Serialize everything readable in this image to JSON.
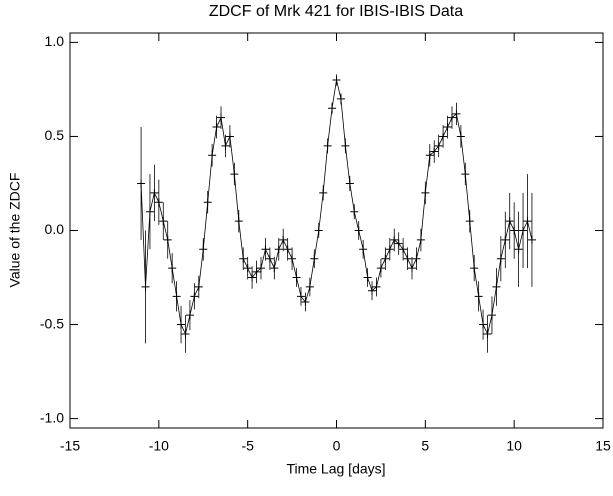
{
  "chart_data": {
    "type": "errorbar",
    "title": "ZDCF of Mrk 421 for IBIS-IBIS Data",
    "x_label": "Time Lag [days]",
    "y_label": "Value of the ZDCF",
    "xlim": [
      -15,
      15
    ],
    "xticks": [
      -15,
      -10,
      -5,
      0,
      5,
      10,
      15
    ],
    "ylim": [
      -1.05,
      1.05
    ],
    "yticks": [
      {
        "value": 1.0,
        "label": "1.0"
      },
      {
        "value": 0.5,
        "label": "0.5"
      },
      {
        "value": 0.0,
        "label": "0.0"
      },
      {
        "value": -0.5,
        "label": "-0.5"
      },
      {
        "value": -1.0,
        "label": "-1.0"
      }
    ],
    "color": "#000000",
    "x": [
      -11,
      -10.75,
      -10.5,
      -10.25,
      -10,
      -9.75,
      -9.5,
      -9.25,
      -9,
      -8.75,
      -8.5,
      -8.25,
      -8,
      -7.75,
      -7.5,
      -7.25,
      -7,
      -6.75,
      -6.5,
      -6.25,
      -6,
      -5.75,
      -5.5,
      -5.25,
      -5,
      -4.75,
      -4.5,
      -4.25,
      -4,
      -3.75,
      -3.5,
      -3.25,
      -3,
      -2.75,
      -2.5,
      -2.25,
      -2,
      -1.75,
      -1.5,
      -1.25,
      -1,
      -0.75,
      -0.5,
      -0.25,
      0,
      0.25,
      0.5,
      0.75,
      1,
      1.25,
      1.5,
      1.75,
      2,
      2.25,
      2.5,
      2.75,
      3,
      3.25,
      3.5,
      3.75,
      4,
      4.25,
      4.5,
      4.75,
      5,
      5.25,
      5.5,
      5.75,
      6,
      6.25,
      6.5,
      6.75,
      7,
      7.25,
      7.5,
      7.75,
      8,
      8.25,
      8.5,
      8.75,
      9,
      9.25,
      9.5,
      9.75,
      10,
      10.25,
      10.5,
      10.75,
      11
    ],
    "values": [
      0.25,
      -0.3,
      0.1,
      0.2,
      0.15,
      0.05,
      -0.05,
      -0.2,
      -0.35,
      -0.5,
      -0.55,
      -0.45,
      -0.35,
      -0.3,
      -0.1,
      0.15,
      0.4,
      0.55,
      0.6,
      0.45,
      0.5,
      0.3,
      0.05,
      -0.15,
      -0.2,
      -0.25,
      -0.22,
      -0.2,
      -0.1,
      -0.15,
      -0.2,
      -0.1,
      -0.05,
      -0.1,
      -0.15,
      -0.25,
      -0.35,
      -0.38,
      -0.3,
      -0.15,
      0.0,
      0.2,
      0.45,
      0.65,
      0.8,
      0.7,
      0.45,
      0.25,
      0.1,
      0.0,
      -0.1,
      -0.25,
      -0.32,
      -0.3,
      -0.2,
      -0.15,
      -0.1,
      -0.05,
      -0.07,
      -0.1,
      -0.15,
      -0.2,
      -0.15,
      -0.05,
      0.2,
      0.4,
      0.42,
      0.45,
      0.5,
      0.55,
      0.6,
      0.62,
      0.5,
      0.3,
      0.05,
      -0.2,
      -0.35,
      -0.5,
      -0.55,
      -0.45,
      -0.3,
      -0.15,
      -0.05,
      0.05,
      0.0,
      -0.1,
      0.0,
      0.05,
      -0.05
    ],
    "errors": [
      0.3,
      0.3,
      0.2,
      0.15,
      0.12,
      0.1,
      0.1,
      0.08,
      0.08,
      0.1,
      0.1,
      0.08,
      0.07,
      0.06,
      0.06,
      0.06,
      0.06,
      0.06,
      0.06,
      0.06,
      0.06,
      0.06,
      0.06,
      0.06,
      0.06,
      0.06,
      0.06,
      0.06,
      0.06,
      0.06,
      0.06,
      0.06,
      0.06,
      0.06,
      0.06,
      0.05,
      0.05,
      0.05,
      0.05,
      0.05,
      0.04,
      0.04,
      0.04,
      0.03,
      0.03,
      0.03,
      0.04,
      0.04,
      0.04,
      0.05,
      0.05,
      0.05,
      0.05,
      0.05,
      0.05,
      0.06,
      0.06,
      0.06,
      0.06,
      0.06,
      0.06,
      0.06,
      0.06,
      0.06,
      0.06,
      0.06,
      0.06,
      0.06,
      0.06,
      0.06,
      0.06,
      0.06,
      0.06,
      0.06,
      0.06,
      0.07,
      0.08,
      0.08,
      0.1,
      0.1,
      0.1,
      0.12,
      0.15,
      0.15,
      0.15,
      0.2,
      0.2,
      0.25,
      0.25
    ]
  }
}
